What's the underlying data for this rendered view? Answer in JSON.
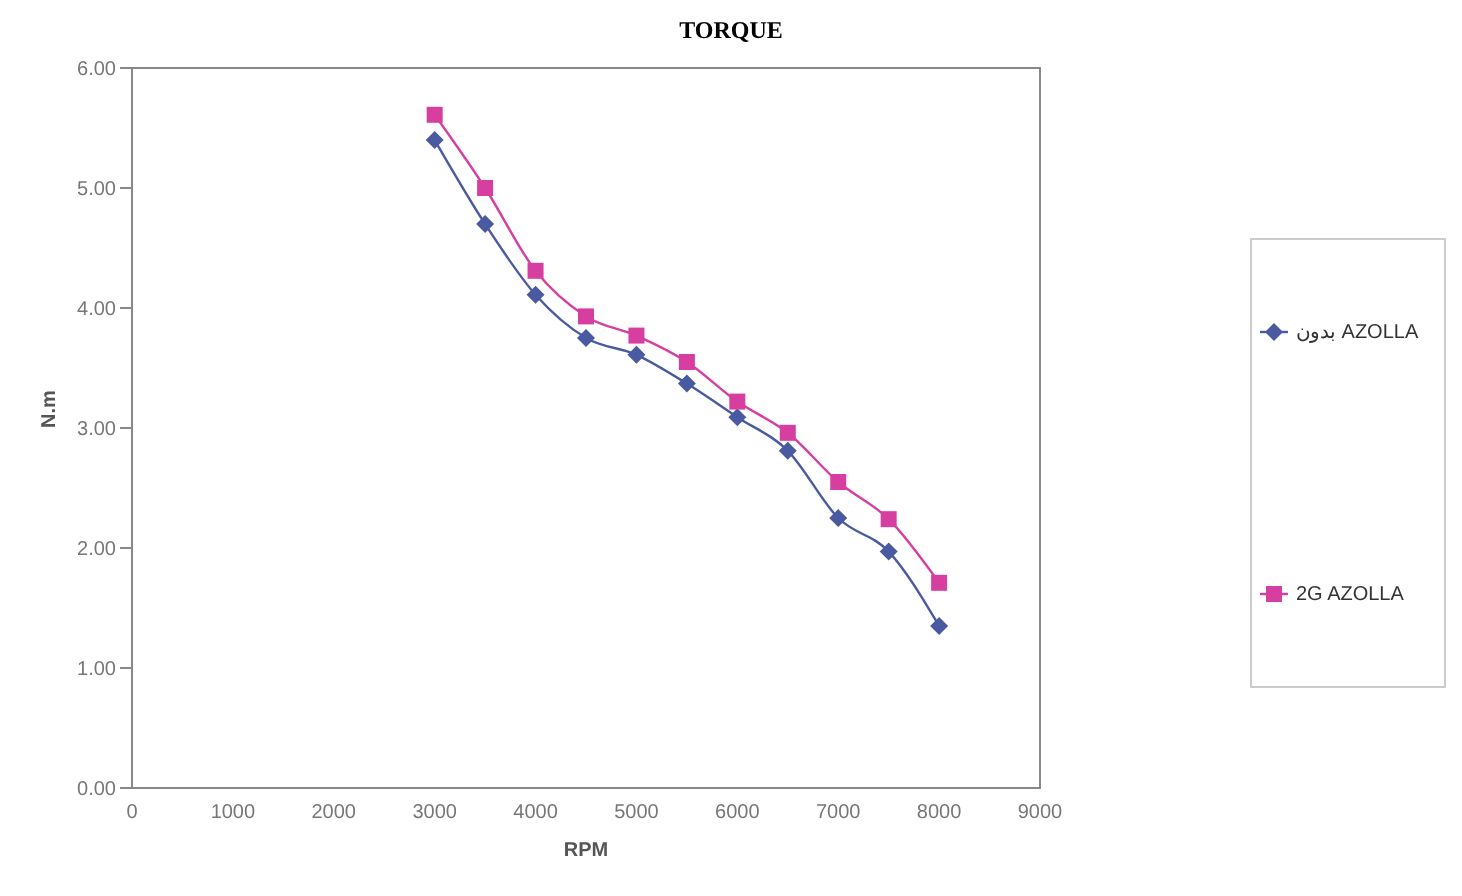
{
  "chart_data": {
    "type": "line",
    "title": "TORQUE",
    "xlabel": "RPM",
    "ylabel": "N.m",
    "x": [
      3000,
      3500,
      4000,
      4500,
      5000,
      5500,
      6000,
      6500,
      7000,
      7500,
      8000
    ],
    "series": [
      {
        "name": "بدون AZOLLA",
        "color": "#4a5aa0",
        "marker": "diamond",
        "values": [
          5.4,
          4.7,
          4.11,
          3.75,
          3.61,
          3.37,
          3.09,
          2.81,
          2.25,
          1.97,
          1.35
        ]
      },
      {
        "name": "2G AZOLLA",
        "color": "#d63fa0",
        "marker": "square",
        "values": [
          5.61,
          5.0,
          4.31,
          3.93,
          3.77,
          3.55,
          3.22,
          2.96,
          2.55,
          2.24,
          1.71
        ]
      }
    ],
    "xlim": [
      0,
      9000
    ],
    "xticks": [
      0,
      1000,
      2000,
      3000,
      4000,
      5000,
      6000,
      7000,
      8000,
      9000
    ],
    "ylim": [
      0,
      6
    ],
    "yticks": [
      {
        "value": 0,
        "label": "0.00"
      },
      {
        "value": 1,
        "label": "1.00"
      },
      {
        "value": 2,
        "label": "2.00"
      },
      {
        "value": 3,
        "label": "3.00"
      },
      {
        "value": 4,
        "label": "4.00"
      },
      {
        "value": 5,
        "label": "5.00"
      },
      {
        "value": 6,
        "label": "6.00"
      }
    ],
    "grid": false,
    "legend": "right",
    "line_style": "solid"
  }
}
